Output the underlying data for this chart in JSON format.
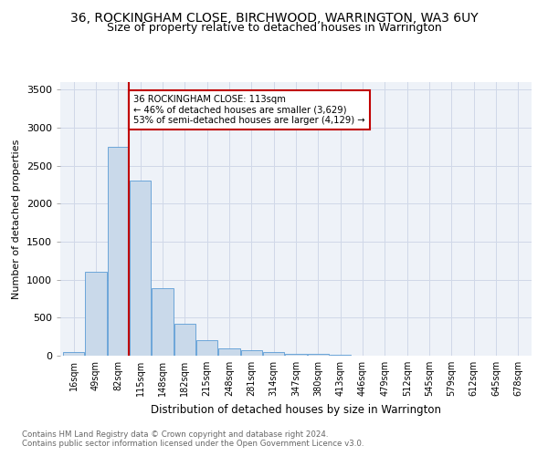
{
  "title": "36, ROCKINGHAM CLOSE, BIRCHWOOD, WARRINGTON, WA3 6UY",
  "subtitle": "Size of property relative to detached houses in Warrington",
  "xlabel": "Distribution of detached houses by size in Warrington",
  "ylabel": "Number of detached properties",
  "footnote1": "Contains HM Land Registry data © Crown copyright and database right 2024.",
  "footnote2": "Contains public sector information licensed under the Open Government Licence v3.0.",
  "bar_labels": [
    "16sqm",
    "49sqm",
    "82sqm",
    "115sqm",
    "148sqm",
    "182sqm",
    "215sqm",
    "248sqm",
    "281sqm",
    "314sqm",
    "347sqm",
    "380sqm",
    "413sqm",
    "446sqm",
    "479sqm",
    "512sqm",
    "545sqm",
    "579sqm",
    "612sqm",
    "645sqm",
    "678sqm"
  ],
  "bar_values": [
    50,
    1100,
    2750,
    2300,
    890,
    420,
    200,
    100,
    70,
    50,
    30,
    20,
    10,
    5,
    3,
    2,
    1,
    1,
    0,
    0,
    0
  ],
  "bar_color": "#c9d9ea",
  "bar_edge_color": "#5b9bd5",
  "vline_color": "#c00000",
  "annotation_text": "36 ROCKINGHAM CLOSE: 113sqm\n← 46% of detached houses are smaller (3,629)\n53% of semi-detached houses are larger (4,129) →",
  "ylim": [
    0,
    3600
  ],
  "yticks": [
    0,
    500,
    1000,
    1500,
    2000,
    2500,
    3000,
    3500
  ],
  "grid_color": "#d0d8e8",
  "bg_color": "#eef2f8",
  "title_fontsize": 10,
  "subtitle_fontsize": 9
}
